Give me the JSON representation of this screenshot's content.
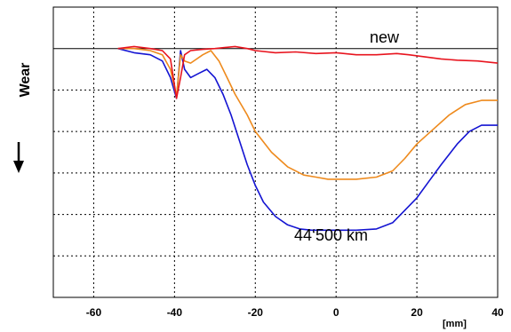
{
  "chart_data": {
    "type": "line",
    "title": "",
    "xlabel": "",
    "x_unit": "[mm]",
    "ylabel": "Wear",
    "xlim": [
      -70,
      40
    ],
    "x_ticks": [
      -60,
      -40,
      -20,
      0,
      20,
      40
    ],
    "ylim": [
      -6,
      1
    ],
    "grid": true,
    "reference_line": {
      "y": 0,
      "label": "new"
    },
    "annotations": [
      {
        "text": "44‘500 km",
        "x": -5,
        "y": -4.4
      }
    ],
    "series": [
      {
        "color": "#e8141e",
        "x": [
          -54,
          -50,
          -46,
          -43,
          -41,
          -39.5,
          -38.5,
          -37.5,
          -36,
          -33,
          -30,
          -25,
          -22,
          -20,
          -15,
          -10,
          -5,
          0,
          5,
          10,
          15,
          18,
          22,
          26,
          30,
          35,
          40
        ],
        "y": [
          0.0,
          0.05,
          0.0,
          -0.05,
          -0.25,
          -1.2,
          -0.7,
          -0.15,
          -0.05,
          -0.02,
          0.0,
          0.05,
          0.0,
          -0.05,
          -0.1,
          -0.08,
          -0.12,
          -0.1,
          -0.15,
          -0.15,
          -0.12,
          -0.15,
          -0.2,
          -0.25,
          -0.28,
          -0.3,
          -0.35
        ]
      },
      {
        "color": "#ee8a1d",
        "x": [
          -54,
          -50,
          -46,
          -43,
          -41,
          -39.5,
          -38.5,
          -37.5,
          -36,
          -33,
          -31,
          -29,
          -27,
          -25,
          -22,
          -20,
          -16,
          -12,
          -8,
          -5,
          -2,
          0,
          5,
          10,
          14,
          17,
          20,
          24,
          28,
          32,
          36,
          40
        ],
        "y": [
          0.0,
          0.0,
          -0.05,
          -0.15,
          -0.5,
          -1.15,
          -0.15,
          -0.3,
          -0.35,
          -0.15,
          -0.05,
          -0.3,
          -0.7,
          -1.1,
          -1.6,
          -2.0,
          -2.5,
          -2.85,
          -3.05,
          -3.1,
          -3.15,
          -3.15,
          -3.15,
          -3.1,
          -2.95,
          -2.65,
          -2.3,
          -1.95,
          -1.6,
          -1.35,
          -1.25,
          -1.25
        ]
      },
      {
        "color": "#1414d2",
        "x": [
          -54,
          -50,
          -46,
          -43,
          -41,
          -39.5,
          -38.5,
          -37.5,
          -36,
          -34,
          -32,
          -30,
          -28,
          -26,
          -24,
          -22,
          -20,
          -18,
          -15,
          -12,
          -9,
          -6,
          -3,
          0,
          5,
          10,
          14,
          17,
          20,
          23,
          26,
          30,
          33,
          36,
          40
        ],
        "y": [
          0.0,
          -0.1,
          -0.15,
          -0.3,
          -0.7,
          -1.2,
          -0.05,
          -0.5,
          -0.7,
          -0.6,
          -0.5,
          -0.7,
          -1.1,
          -1.6,
          -2.2,
          -2.8,
          -3.3,
          -3.7,
          -4.05,
          -4.25,
          -4.35,
          -4.38,
          -4.38,
          -4.38,
          -4.38,
          -4.35,
          -4.2,
          -3.9,
          -3.6,
          -3.2,
          -2.8,
          -2.3,
          -2.0,
          -1.85,
          -1.85
        ]
      }
    ]
  }
}
